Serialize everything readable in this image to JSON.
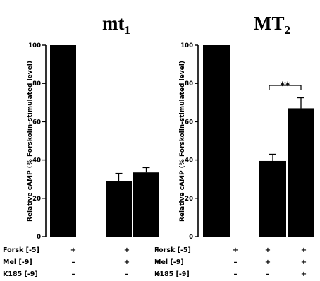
{
  "chart_data": [
    {
      "type": "bar",
      "title": "mt",
      "title_subscript": "1",
      "ylabel": "Relative cAMP (% Forskolin-stimulated level)",
      "ylim": [
        0,
        100
      ],
      "yticks": [
        "0",
        "20",
        "40",
        "60",
        "80",
        "100"
      ],
      "categories": [
        "Forsk+Mel-K185-",
        "Forsk+Mel+K185-",
        "Forsk+Mel+K185+"
      ],
      "values": [
        100,
        29,
        33.5
      ],
      "errors": [
        0,
        4,
        2.5
      ],
      "bar_color": "#000000",
      "significance": null
    },
    {
      "type": "bar",
      "title": "MT",
      "title_subscript": "2",
      "ylabel": "Relative cAMP (% Forskolin-stimulated level)",
      "ylim": [
        0,
        100
      ],
      "yticks": [
        "0",
        "20",
        "40",
        "60",
        "80",
        "100"
      ],
      "categories": [
        "Forsk+Mel-K185-",
        "Forsk+Mel+K185-",
        "Forsk+Mel+K185+"
      ],
      "values": [
        100,
        39.5,
        67
      ],
      "errors": [
        0,
        3.5,
        5.5
      ],
      "bar_color": "#000000",
      "significance": {
        "between": [
          1,
          2
        ],
        "label": "**"
      }
    }
  ],
  "treatments": {
    "rows": [
      {
        "label": "Forsk [-5]",
        "signs": [
          "+",
          "+",
          "+"
        ]
      },
      {
        "label": "Mel [-9]",
        "signs": [
          "–",
          "+",
          "+"
        ]
      },
      {
        "label": "K185 [-9]",
        "signs": [
          "–",
          "–",
          "+"
        ]
      }
    ]
  }
}
